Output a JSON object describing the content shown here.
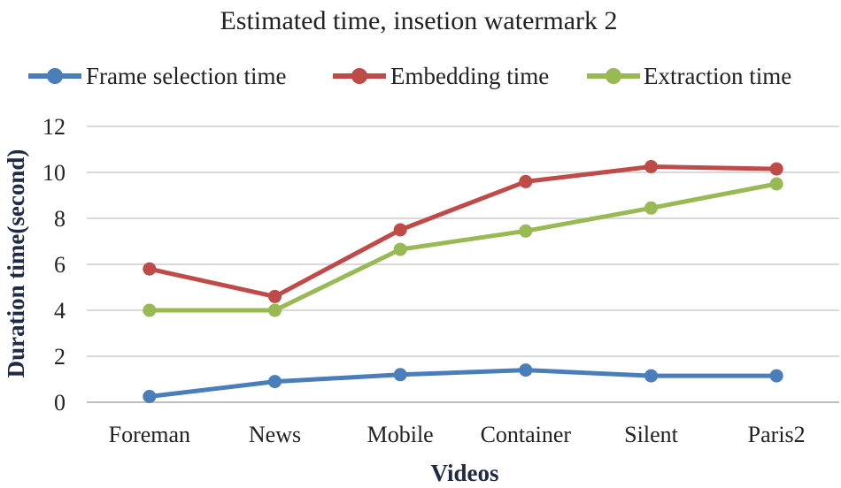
{
  "chart_data": {
    "type": "line",
    "title": "Estimated time, insetion watermark 2",
    "xlabel": "Videos",
    "ylabel": "Duration time(second)",
    "categories": [
      "Foreman",
      "News",
      "Mobile",
      "Container",
      "Silent",
      "Paris2"
    ],
    "ylim": [
      0,
      12
    ],
    "yticks": [
      0,
      2,
      4,
      6,
      8,
      10,
      12
    ],
    "ytick_labels": [
      "0",
      "2",
      "4",
      "6",
      "8",
      "10",
      "12"
    ],
    "grid": true,
    "legend_position": "top",
    "series": [
      {
        "name": "Frame selection time",
        "color": "#4a7ebb",
        "values": [
          0.25,
          0.9,
          1.2,
          1.4,
          1.15,
          1.15
        ]
      },
      {
        "name": "Embedding time",
        "color": "#be4b48",
        "values": [
          5.8,
          4.6,
          7.5,
          9.6,
          10.25,
          10.15
        ]
      },
      {
        "name": "Extraction time",
        "color": "#98b954",
        "values": [
          4.0,
          4.0,
          6.65,
          7.45,
          8.45,
          9.5
        ]
      }
    ]
  }
}
